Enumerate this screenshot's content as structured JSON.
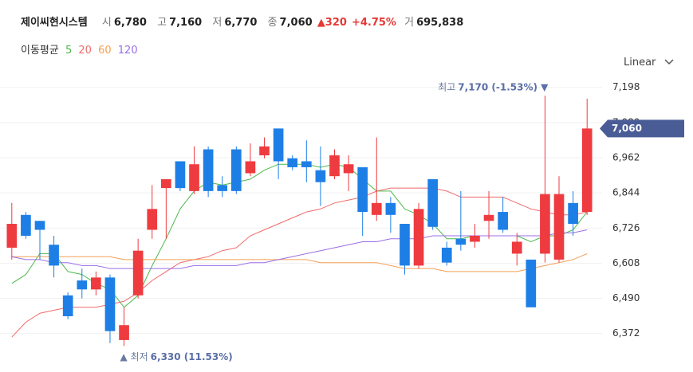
{
  "header": {
    "name": "제이씨현시스템",
    "items": [
      {
        "label": "시",
        "value": "6,780"
      },
      {
        "label": "고",
        "value": "7,160"
      },
      {
        "label": "저",
        "value": "6,770"
      },
      {
        "label": "종",
        "value": "7,060"
      }
    ],
    "change": "▲320",
    "change_pct": "+4.75%",
    "volume_label": "거",
    "volume": "695,838"
  },
  "scale_selector": "Linear",
  "chart_data": {
    "type": "candlestick",
    "ylim": [
      6315,
      7240
    ],
    "yticks": [
      {
        "value": 7198,
        "label": "7,198"
      },
      {
        "value": 7080,
        "label": "7,080"
      },
      {
        "value": 6962,
        "label": "6,962"
      },
      {
        "value": 6844,
        "label": "6,844"
      },
      {
        "value": 6726,
        "label": "6,726"
      },
      {
        "value": 6608,
        "label": "6,608"
      },
      {
        "value": 6490,
        "label": "6,490"
      },
      {
        "value": 6372,
        "label": "6,372"
      }
    ],
    "grid": true,
    "up_color": "#ee3b3f",
    "down_color": "#1d7fe6",
    "open": [
      6660,
      6770,
      6750,
      6670,
      6500,
      6550,
      6520,
      6560,
      6350,
      6500,
      6720,
      6860,
      6950,
      6850,
      6990,
      6870,
      6990,
      6910,
      6970,
      7060,
      6960,
      6950,
      6920,
      6900,
      6910,
      6930,
      6770,
      6810,
      6740,
      6600,
      6890,
      6660,
      6690,
      6680,
      6750,
      6780,
      6640,
      6620,
      6640,
      6620,
      6810,
      6780
    ],
    "high": [
      6810,
      6780,
      6750,
      6700,
      6510,
      6590,
      6580,
      6570,
      6460,
      6690,
      6870,
      6890,
      6950,
      7000,
      7000,
      6900,
      7000,
      7010,
      7030,
      7060,
      6970,
      7020,
      7000,
      6990,
      6970,
      6930,
      7030,
      6830,
      6740,
      6810,
      6890,
      6680,
      6850,
      6740,
      6850,
      6830,
      6710,
      6620,
      7170,
      6900,
      6850,
      7160
    ],
    "low": [
      6620,
      6690,
      6620,
      6560,
      6420,
      6490,
      6500,
      6340,
      6330,
      6490,
      6690,
      6690,
      6850,
      6840,
      6830,
      6830,
      6840,
      6900,
      6960,
      6890,
      6920,
      6880,
      6800,
      6890,
      6850,
      6700,
      6750,
      6710,
      6570,
      6590,
      6720,
      6600,
      6650,
      6660,
      6690,
      6710,
      6600,
      6460,
      6610,
      6610,
      6700,
      6770
    ],
    "close": [
      6740,
      6700,
      6720,
      6600,
      6430,
      6520,
      6560,
      6380,
      6400,
      6650,
      6790,
      6890,
      6860,
      6940,
      6850,
      6850,
      6850,
      6950,
      7000,
      6950,
      6930,
      6930,
      6880,
      6970,
      6940,
      6780,
      6810,
      6770,
      6600,
      6790,
      6730,
      6610,
      6670,
      6700,
      6770,
      6720,
      6680,
      6460,
      6840,
      6840,
      6740,
      7060
    ],
    "ma_label": "이동평균",
    "ma_series": [
      {
        "name": "5",
        "color": "#4cb84c",
        "values": [
          6540,
          6570,
          6640,
          6640,
          6580,
          6570,
          6540,
          6520,
          6460,
          6500,
          6600,
          6690,
          6790,
          6850,
          6880,
          6870,
          6880,
          6890,
          6920,
          6940,
          6940,
          6940,
          6930,
          6940,
          6930,
          6890,
          6850,
          6850,
          6790,
          6770,
          6740,
          6690,
          6690,
          6700,
          6700,
          6700,
          6700,
          6680,
          6700,
          6700,
          6720,
          6780
        ]
      },
      {
        "name": "20",
        "color": "#ef6b6b",
        "values": [
          6360,
          6410,
          6440,
          6450,
          6460,
          6460,
          6460,
          6470,
          6480,
          6510,
          6550,
          6580,
          6610,
          6620,
          6630,
          6650,
          6660,
          6700,
          6720,
          6740,
          6760,
          6780,
          6790,
          6810,
          6820,
          6830,
          6850,
          6860,
          6860,
          6860,
          6860,
          6850,
          6830,
          6830,
          6830,
          6830,
          6810,
          6790,
          6780,
          6770,
          6770,
          6780
        ]
      },
      {
        "name": "60",
        "color": "#f3a055",
        "values": [
          6630,
          6630,
          6630,
          6630,
          6630,
          6630,
          6630,
          6630,
          6620,
          6620,
          6620,
          6620,
          6620,
          6620,
          6620,
          6620,
          6620,
          6620,
          6620,
          6620,
          6620,
          6620,
          6610,
          6610,
          6610,
          6610,
          6610,
          6600,
          6590,
          6590,
          6590,
          6580,
          6580,
          6580,
          6580,
          6580,
          6580,
          6590,
          6600,
          6610,
          6620,
          6640
        ]
      },
      {
        "name": "120",
        "color": "#9b6ee8",
        "values": [
          6630,
          6620,
          6620,
          6610,
          6610,
          6600,
          6600,
          6590,
          6590,
          6590,
          6590,
          6590,
          6590,
          6600,
          6600,
          6600,
          6600,
          6610,
          6610,
          6620,
          6630,
          6640,
          6650,
          6660,
          6670,
          6680,
          6680,
          6690,
          6690,
          6690,
          6700,
          6700,
          6700,
          6700,
          6700,
          6700,
          6700,
          6700,
          6700,
          6710,
          6710,
          6720
        ]
      }
    ],
    "max_annotation": {
      "label": "최고",
      "text": "7,170 (-1.53%) ▼",
      "index": 38
    },
    "min_annotation": {
      "label": "▲ 최저",
      "text": "6,330 (11.53%)",
      "index": 8
    },
    "current_price": {
      "value": 7060,
      "label": "7,060",
      "color": "#4a5c95"
    }
  }
}
